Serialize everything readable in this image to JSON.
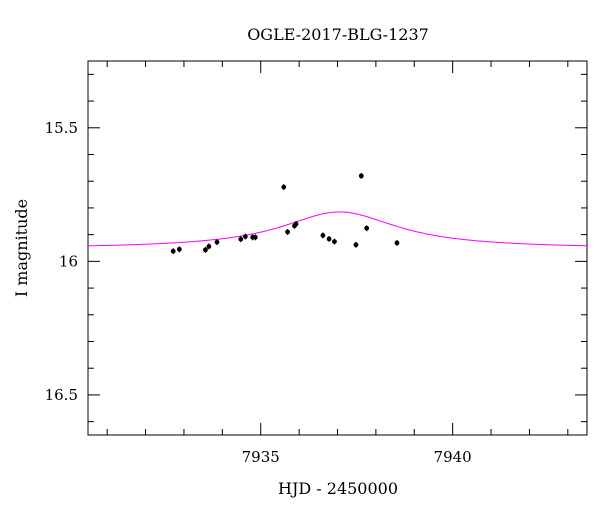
{
  "chart_data": {
    "type": "scatter",
    "title": "OGLE-2017-BLG-1237",
    "xlabel": "HJD - 2450000",
    "ylabel": "I magnitude",
    "xlim": [
      7930.5,
      7943.5
    ],
    "ylim": [
      16.65,
      15.25
    ],
    "y_inverted": true,
    "x_major_ticks": [
      7935,
      7940
    ],
    "x_tick_labels": [
      "7935",
      "7940"
    ],
    "x_minor_step": 1,
    "y_major_ticks": [
      15.5,
      16,
      16.5
    ],
    "y_tick_labels": [
      "15.5",
      "16",
      "16.5"
    ],
    "y_minor_step": 0.1,
    "grid": false,
    "legend": "none",
    "colors": {
      "points": "#000000",
      "model": "#ff00ff",
      "frame": "#000000"
    },
    "series": [
      {
        "kind": "points",
        "points": [
          {
            "x": 7932.72,
            "y": 15.962
          },
          {
            "x": 7932.88,
            "y": 15.955
          },
          {
            "x": 7933.56,
            "y": 15.957
          },
          {
            "x": 7933.65,
            "y": 15.944
          },
          {
            "x": 7933.86,
            "y": 15.928
          },
          {
            "x": 7934.48,
            "y": 15.917
          },
          {
            "x": 7934.6,
            "y": 15.907
          },
          {
            "x": 7934.79,
            "y": 15.91
          },
          {
            "x": 7934.86,
            "y": 15.91
          },
          {
            "x": 7935.6,
            "y": 15.722
          },
          {
            "x": 7935.7,
            "y": 15.89
          },
          {
            "x": 7935.88,
            "y": 15.867
          },
          {
            "x": 7935.92,
            "y": 15.86
          },
          {
            "x": 7936.62,
            "y": 15.903
          },
          {
            "x": 7936.78,
            "y": 15.916
          },
          {
            "x": 7936.92,
            "y": 15.926
          },
          {
            "x": 7937.48,
            "y": 15.938
          },
          {
            "x": 7937.62,
            "y": 15.68
          },
          {
            "x": 7937.76,
            "y": 15.876
          },
          {
            "x": 7938.55,
            "y": 15.931
          }
        ]
      },
      {
        "kind": "model",
        "baseline": 15.952,
        "peak": 15.815,
        "t0": 7937.05,
        "width": 1.85
      }
    ]
  }
}
